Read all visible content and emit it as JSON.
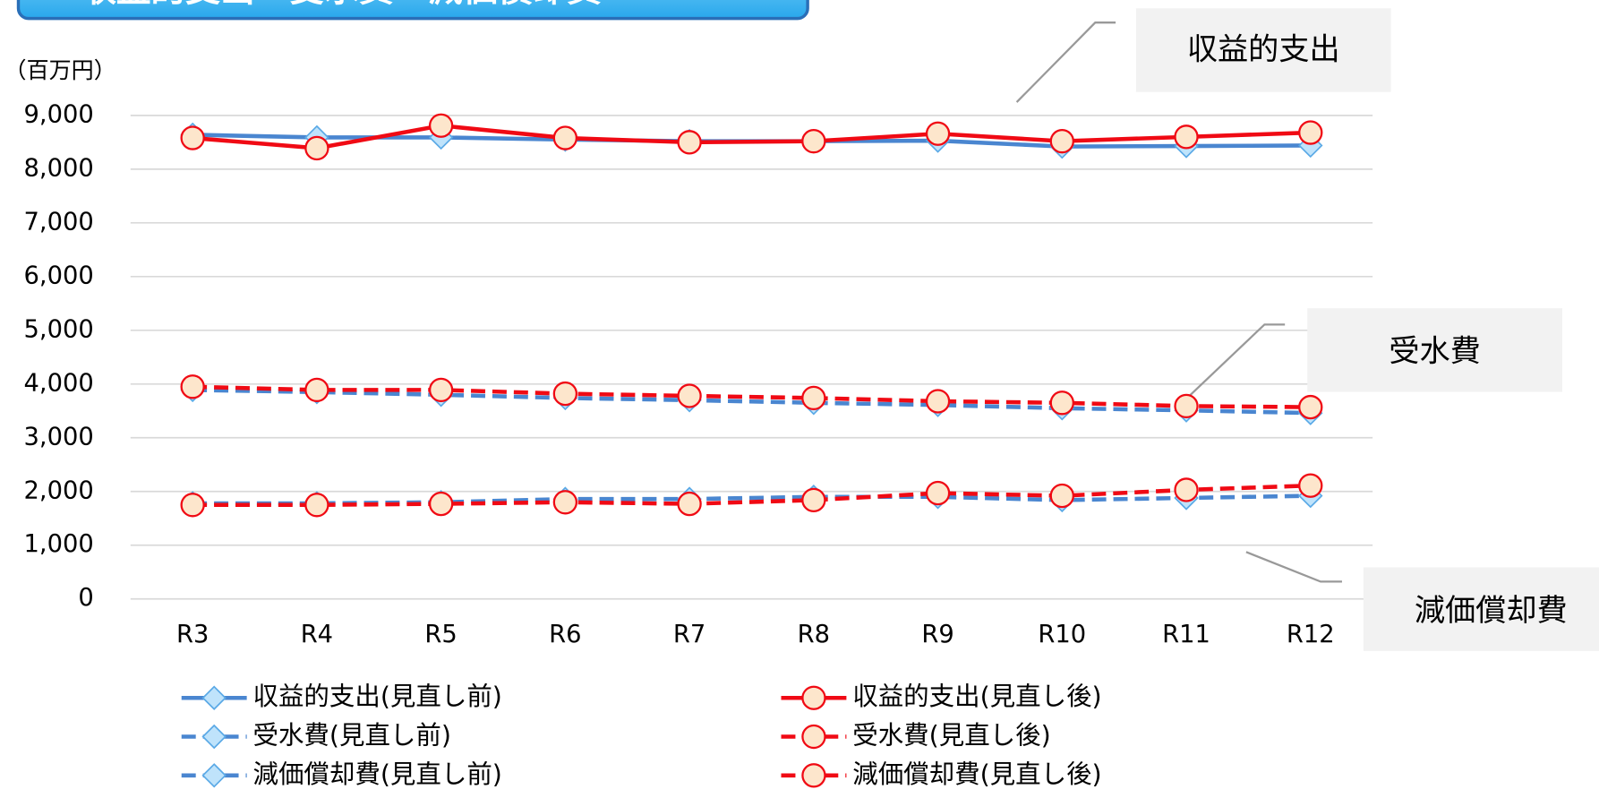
{
  "chart_data": {
    "type": "line",
    "title": "収益的支出・受水費・減価償却費",
    "unit_label": "（百万円）",
    "annotations": [
      "収益的支出",
      "受水費",
      "減価償却費"
    ],
    "categories": [
      "R3",
      "R4",
      "R5",
      "R6",
      "R7",
      "R8",
      "R9",
      "R10",
      "R11",
      "R12"
    ],
    "ylim": [
      0,
      9000
    ],
    "yticks": [
      0,
      {
        "value": 1000,
        "label": "1,000"
      },
      {
        "value": 2000,
        "label": "2,000"
      },
      {
        "value": 3000,
        "label": "3,000"
      },
      {
        "value": 4000,
        "label": "4,000"
      },
      {
        "value": 5000,
        "label": "5,000"
      },
      {
        "value": 6000,
        "label": "6,000"
      },
      {
        "value": 7000,
        "label": "7,000"
      },
      {
        "value": 8000,
        "label": "8,000"
      },
      {
        "value": 9000,
        "label": "9,000"
      }
    ],
    "grid": true,
    "series": [
      {
        "name": "収益的支出(見直し前)",
        "color": "#4a86d0",
        "marker": "diamond",
        "dashed": false,
        "values": [
          8640,
          8590,
          8590,
          8550,
          8520,
          8520,
          8530,
          8420,
          8430,
          8440
        ]
      },
      {
        "name": "収益的支出(見直し後)",
        "color": "#f00a14",
        "marker": "circle",
        "dashed": false,
        "values": [
          8580,
          8390,
          8810,
          8580,
          8500,
          8520,
          8660,
          8520,
          8600,
          8680
        ]
      },
      {
        "name": "受水費(見直し前)",
        "color": "#4a86d0",
        "marker": "diamond",
        "dashed": true,
        "values": [
          3890,
          3850,
          3800,
          3740,
          3700,
          3650,
          3610,
          3550,
          3510,
          3460
        ]
      },
      {
        "name": "受水費(見直し後)",
        "color": "#f00a14",
        "marker": "circle",
        "dashed": true,
        "values": [
          3950,
          3890,
          3890,
          3820,
          3780,
          3740,
          3680,
          3650,
          3590,
          3570
        ]
      },
      {
        "name": "減価償却費(見直し前)",
        "color": "#4a86d0",
        "marker": "diamond",
        "dashed": true,
        "values": [
          1780,
          1780,
          1800,
          1860,
          1860,
          1900,
          1900,
          1840,
          1880,
          1920
        ]
      },
      {
        "name": "減価償却費(見直し後)",
        "color": "#f00a14",
        "marker": "circle",
        "dashed": true,
        "values": [
          1750,
          1750,
          1770,
          1800,
          1770,
          1840,
          1970,
          1920,
          2030,
          2110
        ]
      }
    ]
  }
}
